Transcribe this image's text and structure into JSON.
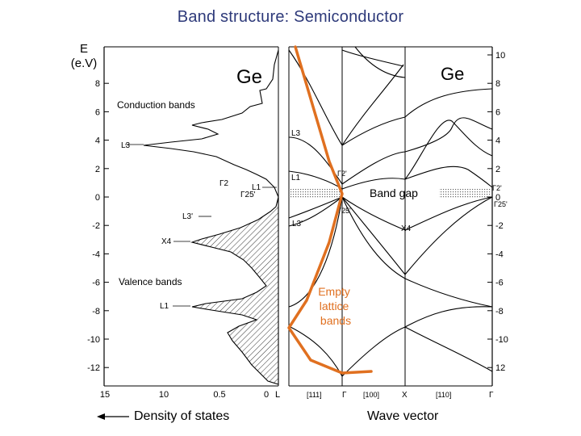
{
  "slide": {
    "title": "Band structure:  Semiconductor",
    "energy_axis_symbol": "E",
    "energy_axis_unit": "(e.V)",
    "dos_label": "Density of states",
    "wavevector_label": "Wave vector"
  },
  "dos_panel": {
    "title": "Ge",
    "conduction_label": "Conduction bands",
    "valence_label": "Valence bands",
    "y_ticks": [
      "8",
      "6",
      "4",
      "2",
      "0",
      "-2",
      "-4",
      "-6",
      "-8",
      "-10",
      "-12"
    ],
    "x_ticks": [
      "15",
      "10",
      "0.5",
      "0",
      "L"
    ],
    "annotations": [
      "L3",
      "L1",
      "Γ2",
      "Γ25'",
      "L3'",
      "X4",
      "L1"
    ]
  },
  "band_panel": {
    "title": "Ge",
    "right_ticks": [
      "10",
      "8",
      "6",
      "4",
      "2",
      "0",
      "-2",
      "-4",
      "-6",
      "-8",
      "-10",
      "12"
    ],
    "k_points": [
      "Γ",
      "X",
      "Γ"
    ],
    "directions": [
      "[111]",
      "[100]",
      "[110]"
    ],
    "point_labels": [
      "L3",
      "L1",
      "L3'",
      "Γ2'",
      "Γ25'",
      "X4",
      "Γ2'",
      "Γ25'"
    ],
    "band_gap_label": "Band gap",
    "empty_lattice_label": "Empty lattice bands"
  },
  "colors": {
    "title": "#2e3a7a",
    "empty_lattice": "#e07020",
    "hatch": "#000000",
    "gap_stipple": "#888888"
  }
}
